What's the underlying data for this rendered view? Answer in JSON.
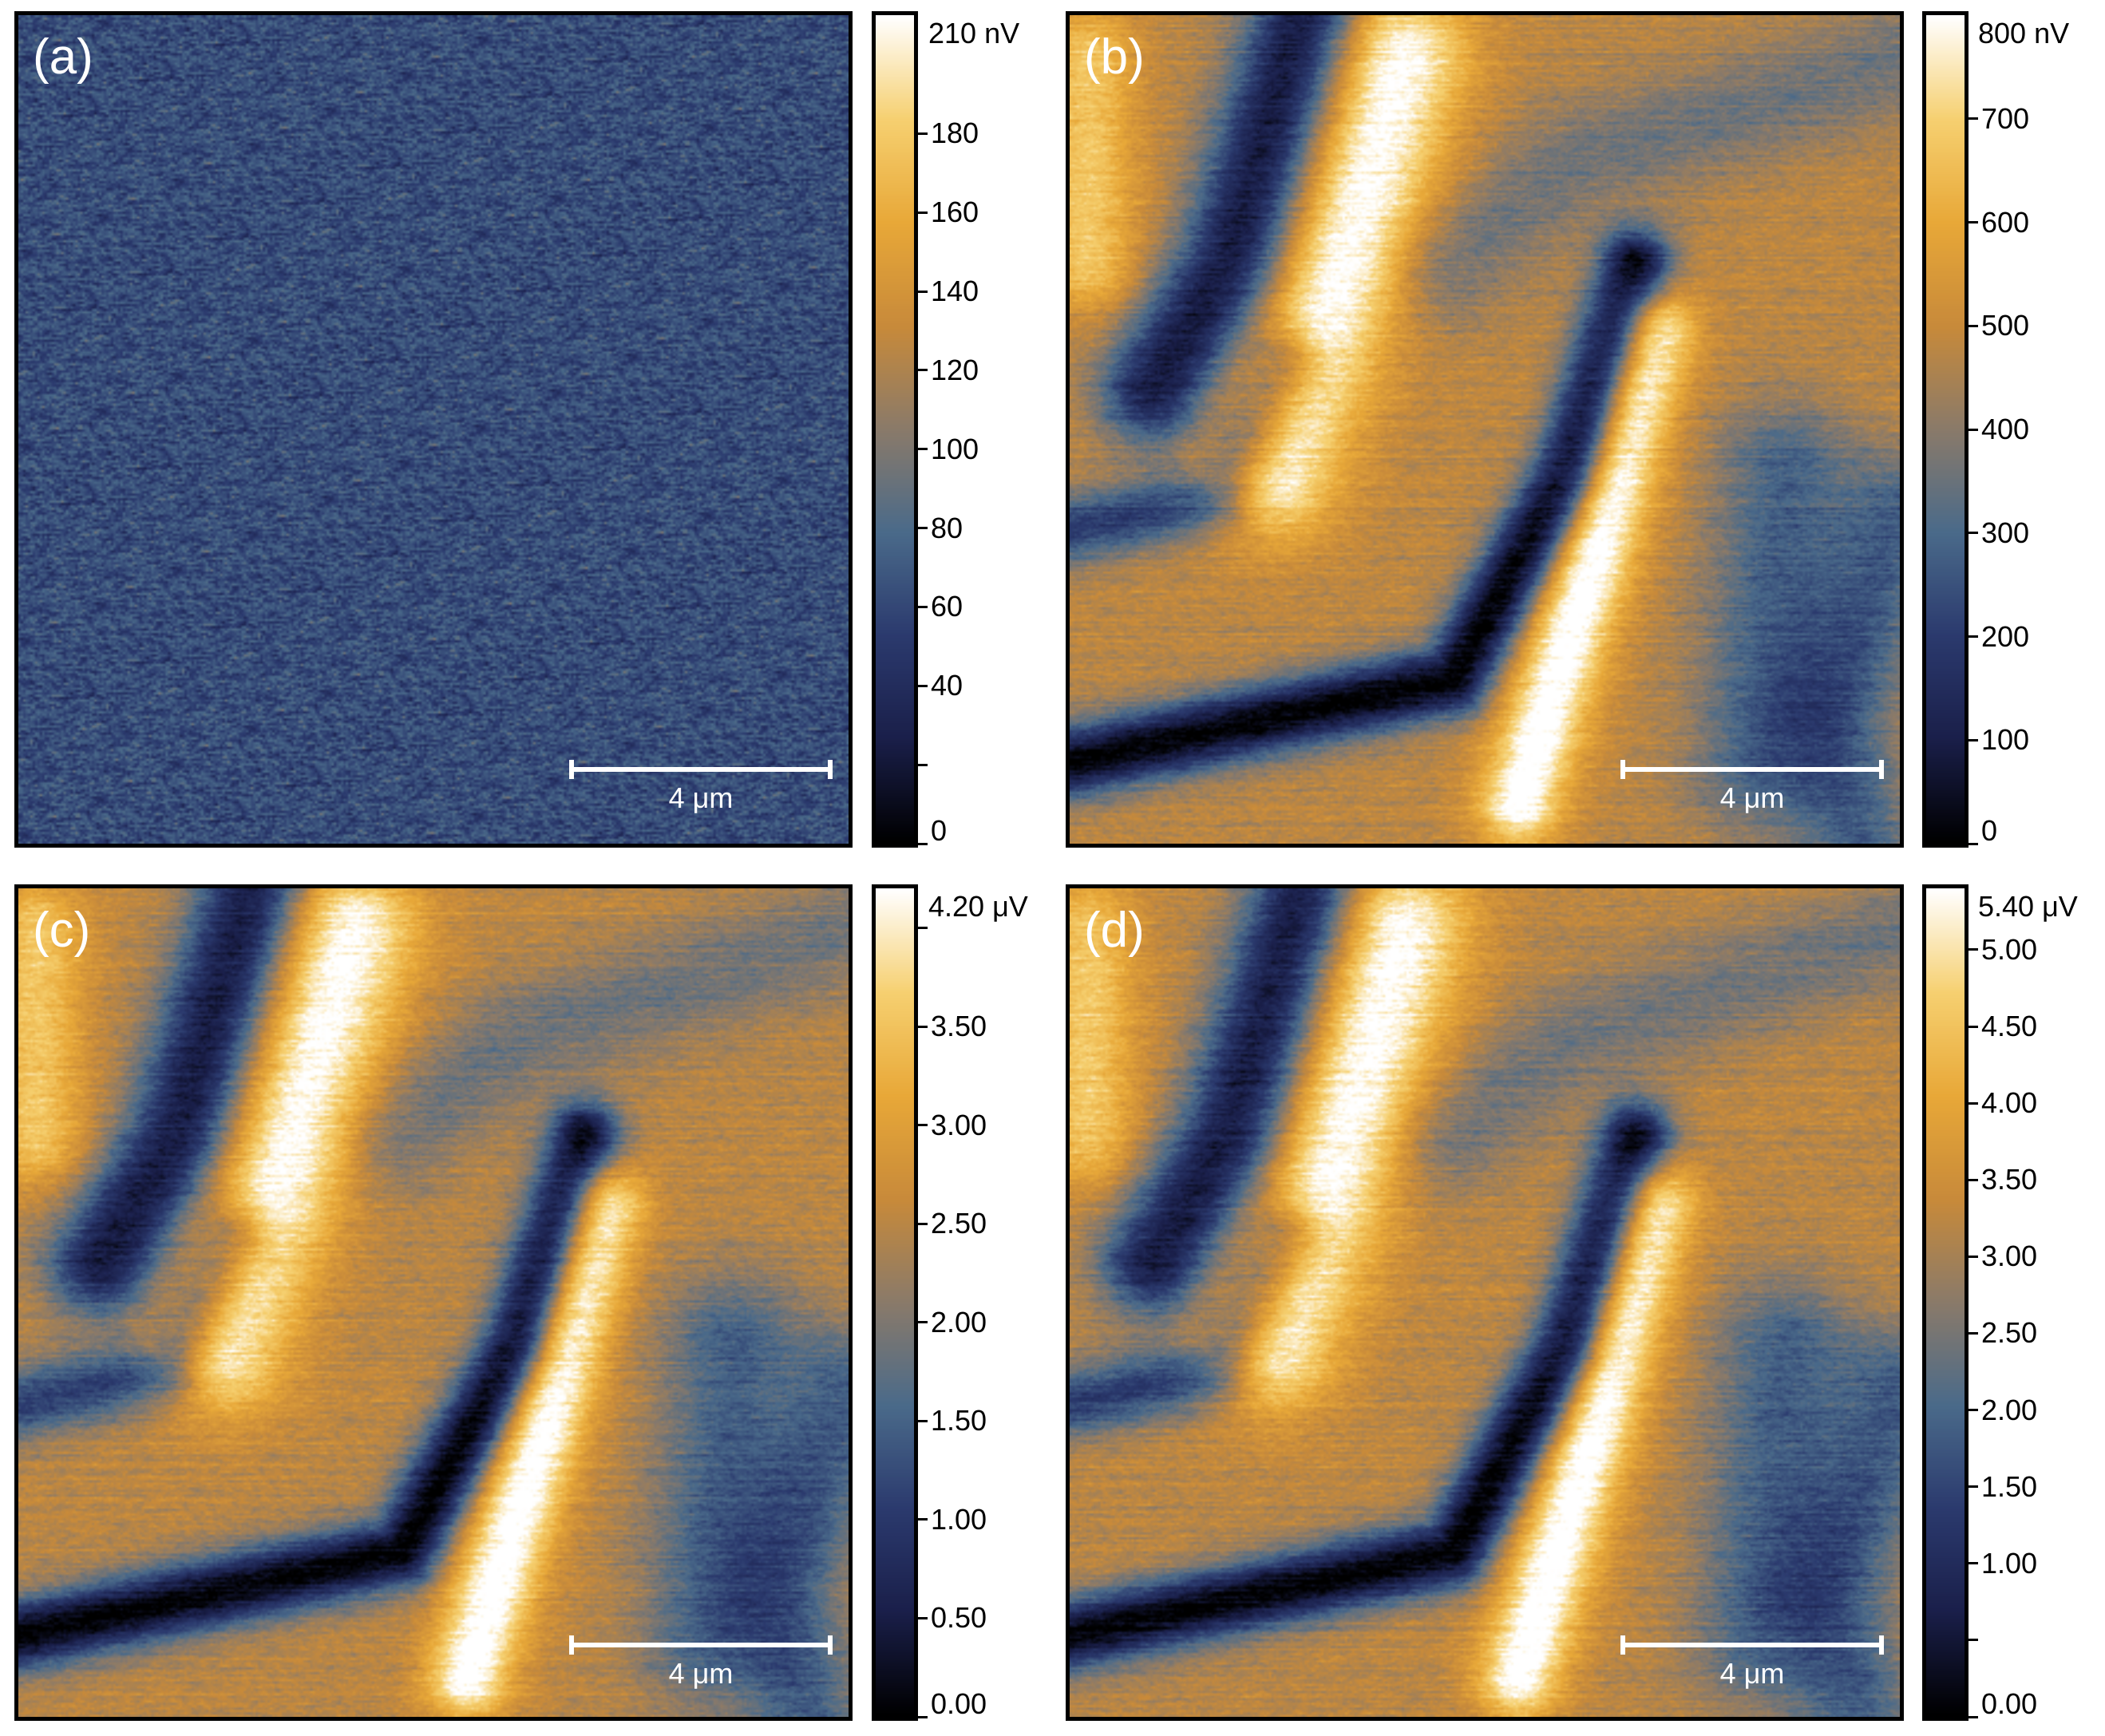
{
  "panels": [
    {
      "label": "(a)",
      "scale_bar": "4 μm",
      "colorbar": {
        "max_label": "210 nV",
        "min": 0,
        "max": 210,
        "ticks": [
          {
            "value": 180,
            "label": "180"
          },
          {
            "value": 160,
            "label": "160"
          },
          {
            "value": 140,
            "label": "140"
          },
          {
            "value": 120,
            "label": "120"
          },
          {
            "value": 100,
            "label": "100"
          },
          {
            "value": 80,
            "label": "80"
          },
          {
            "value": 60,
            "label": "60"
          },
          {
            "value": 40,
            "label": "40"
          },
          {
            "value": 20,
            "label": ""
          },
          {
            "value": 0,
            "label": "0"
          }
        ]
      }
    },
    {
      "label": "(b)",
      "scale_bar": "4 μm",
      "colorbar": {
        "max_label": "800 nV",
        "min": 0,
        "max": 800,
        "ticks": [
          {
            "value": 700,
            "label": "700"
          },
          {
            "value": 600,
            "label": "600"
          },
          {
            "value": 500,
            "label": "500"
          },
          {
            "value": 400,
            "label": "400"
          },
          {
            "value": 300,
            "label": "300"
          },
          {
            "value": 200,
            "label": "200"
          },
          {
            "value": 100,
            "label": "100"
          },
          {
            "value": 0,
            "label": "0"
          }
        ]
      }
    },
    {
      "label": "(c)",
      "scale_bar": "4 μm",
      "colorbar": {
        "max_label": "4.20 μV",
        "min": 0,
        "max": 4.2,
        "ticks": [
          {
            "value": 4.0,
            "label": ""
          },
          {
            "value": 3.5,
            "label": "3.50"
          },
          {
            "value": 3.0,
            "label": "3.00"
          },
          {
            "value": 2.5,
            "label": "2.50"
          },
          {
            "value": 2.0,
            "label": "2.00"
          },
          {
            "value": 1.5,
            "label": "1.50"
          },
          {
            "value": 1.0,
            "label": "1.00"
          },
          {
            "value": 0.5,
            "label": "0.50"
          },
          {
            "value": 0.0,
            "label": "0.00"
          }
        ]
      }
    },
    {
      "label": "(d)",
      "scale_bar": "4 μm",
      "colorbar": {
        "max_label": "5.40 μV",
        "min": 0,
        "max": 5.4,
        "ticks": [
          {
            "value": 5.0,
            "label": "5.00"
          },
          {
            "value": 4.5,
            "label": "4.50"
          },
          {
            "value": 4.0,
            "label": "4.00"
          },
          {
            "value": 3.5,
            "label": "3.50"
          },
          {
            "value": 3.0,
            "label": "3.00"
          },
          {
            "value": 2.5,
            "label": "2.50"
          },
          {
            "value": 2.0,
            "label": "2.00"
          },
          {
            "value": 1.5,
            "label": "1.50"
          },
          {
            "value": 1.0,
            "label": "1.00"
          },
          {
            "value": 0.5,
            "label": ""
          },
          {
            "value": 0.0,
            "label": "0.00"
          }
        ]
      }
    }
  ],
  "colormap": [
    "#000000",
    "#1a1f4a",
    "#2b3a6e",
    "#4a6a8a",
    "#8a7a6a",
    "#c88a3a",
    "#e8a838",
    "#f6d070",
    "#ffffff"
  ]
}
